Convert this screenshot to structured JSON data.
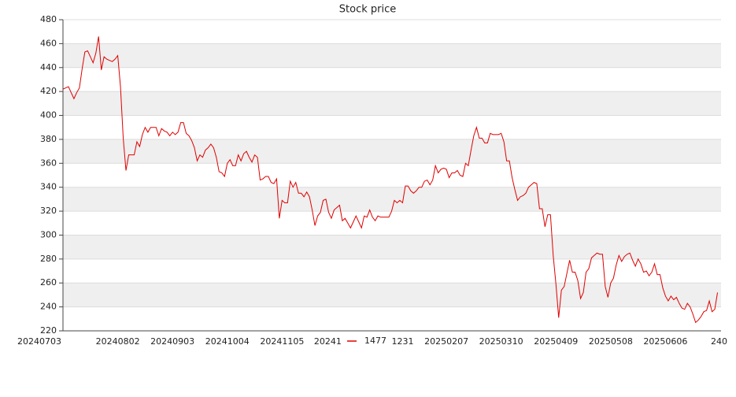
{
  "chart_data": {
    "type": "line",
    "title": "Stock price",
    "categories": [
      "20240703",
      null,
      null,
      null,
      null,
      null,
      null,
      null,
      null,
      null,
      null,
      null,
      null,
      null,
      null,
      null,
      null,
      null,
      null,
      null,
      "20240802",
      null,
      null,
      null,
      null,
      null,
      null,
      null,
      null,
      null,
      null,
      null,
      null,
      null,
      null,
      null,
      null,
      null,
      null,
      null,
      "20240903",
      null,
      null,
      null,
      null,
      null,
      null,
      null,
      null,
      null,
      null,
      null,
      null,
      null,
      null,
      null,
      null,
      null,
      null,
      null,
      "20241004",
      null,
      null,
      null,
      null,
      null,
      null,
      null,
      null,
      null,
      null,
      null,
      null,
      null,
      null,
      null,
      null,
      null,
      null,
      null,
      "20241105",
      null,
      null,
      null,
      null,
      null,
      null,
      null,
      null,
      null,
      null,
      null,
      null,
      null,
      null,
      null,
      null,
      null,
      null,
      null,
      "20241",
      null,
      null,
      null,
      null,
      null,
      null,
      null,
      null,
      null,
      null,
      null,
      null,
      null,
      null,
      null,
      null,
      null,
      null,
      null,
      "1231",
      null,
      null,
      null,
      null,
      null,
      null,
      null,
      null,
      null,
      null,
      null,
      null,
      null,
      null,
      null,
      null,
      null,
      null,
      null,
      "20250207",
      null,
      null,
      null,
      null,
      null,
      null,
      null,
      null,
      null,
      null,
      null,
      null,
      null,
      null,
      null,
      null,
      null,
      null,
      null,
      "20250310",
      null,
      null,
      null,
      null,
      null,
      null,
      null,
      null,
      null,
      null,
      null,
      null,
      null,
      null,
      null,
      null,
      null,
      null,
      null,
      "20250409",
      null,
      null,
      null,
      null,
      null,
      null,
      null,
      null,
      null,
      null,
      null,
      null,
      null,
      null,
      null,
      null,
      null,
      null,
      null,
      "20250508",
      null,
      null,
      null,
      null,
      null,
      null,
      null,
      null,
      null,
      null,
      null,
      null,
      null,
      null,
      null,
      null,
      null,
      null,
      null,
      "20250606",
      null,
      null,
      null,
      null,
      null,
      null,
      null,
      null,
      null,
      null,
      null,
      null,
      null,
      null,
      null,
      null,
      null,
      null,
      null,
      "240"
    ],
    "series": [
      {
        "name": "1477",
        "color": "#e00000",
        "values": [
          422,
          423,
          424,
          419,
          414,
          419,
          423,
          439,
          453,
          454,
          449,
          444,
          452,
          466,
          438,
          449,
          447,
          446,
          445,
          447,
          450,
          424,
          381,
          354,
          367,
          367,
          367,
          378,
          374,
          384,
          390,
          386,
          390,
          390,
          390,
          383,
          389,
          387,
          386,
          383,
          386,
          384,
          386,
          394,
          394,
          385,
          383,
          379,
          373,
          362,
          367,
          365,
          371,
          373,
          376,
          373,
          365,
          353,
          352,
          349,
          360,
          363,
          358,
          358,
          367,
          362,
          368,
          370,
          365,
          361,
          367,
          365,
          346,
          347,
          349,
          349,
          344,
          343,
          347,
          314,
          329,
          327,
          327,
          345,
          340,
          344,
          335,
          335,
          332,
          336,
          332,
          321,
          308,
          316,
          319,
          329,
          330,
          319,
          314,
          321,
          323,
          325,
          312,
          314,
          310,
          306,
          311,
          316,
          311,
          306,
          316,
          315,
          321,
          315,
          312,
          316,
          315,
          315,
          315,
          315,
          320,
          329,
          327,
          329,
          327,
          341,
          341,
          337,
          335,
          337,
          340,
          340,
          345,
          346,
          342,
          346,
          358,
          352,
          355,
          356,
          355,
          348,
          352,
          352,
          354,
          350,
          349,
          360,
          358,
          371,
          383,
          390,
          381,
          381,
          377,
          377,
          385,
          384,
          384,
          384,
          385,
          378,
          362,
          362,
          348,
          338,
          329,
          332,
          333,
          335,
          340,
          342,
          344,
          343,
          322,
          322,
          307,
          317,
          317,
          283,
          259,
          231,
          254,
          257,
          268,
          279,
          269,
          269,
          262,
          247,
          252,
          269,
          272,
          281,
          283,
          285,
          284,
          284,
          257,
          248,
          260,
          264,
          275,
          283,
          278,
          282,
          284,
          285,
          279,
          274,
          280,
          276,
          269,
          270,
          266,
          269,
          276,
          267,
          267,
          256,
          249,
          245,
          249,
          246,
          248,
          243,
          239,
          238,
          243,
          240,
          234,
          227,
          229,
          232,
          236,
          237,
          245,
          236,
          238,
          252,
          null
        ]
      }
    ],
    "ylim": [
      220,
      480
    ],
    "yticks": [
      220,
      240,
      260,
      280,
      300,
      320,
      340,
      360,
      380,
      400,
      420,
      440,
      460,
      480
    ],
    "grid": true
  }
}
